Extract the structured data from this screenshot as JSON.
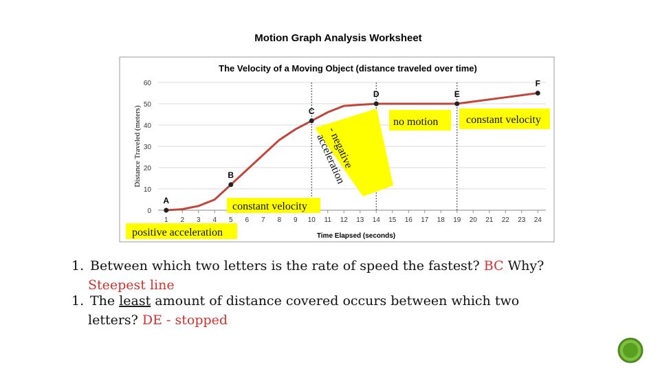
{
  "header": {
    "title": "Motion Graph Analysis Worksheet"
  },
  "chart_data": {
    "type": "line",
    "title": "The Velocity of a Moving Object (distance traveled over time)",
    "x_label": "Time Elapsed (seconds)",
    "y_label": "Distance Traveled (meters)",
    "x": [
      1,
      2,
      3,
      4,
      5,
      6,
      7,
      8,
      9,
      10,
      11,
      12,
      13,
      14,
      15,
      16,
      17,
      18,
      19,
      20,
      21,
      22,
      23,
      24
    ],
    "series": [
      {
        "name": "Distance",
        "color": "#c0463c",
        "values": [
          0,
          0.5,
          2,
          5,
          12,
          19,
          26,
          33,
          38,
          42,
          46,
          49,
          49.5,
          50,
          50,
          50,
          50,
          50,
          50,
          51,
          52,
          53,
          54,
          55
        ],
        "point_labels": [
          "A",
          null,
          null,
          null,
          "B",
          null,
          null,
          null,
          null,
          "C",
          null,
          null,
          null,
          "D",
          null,
          null,
          null,
          null,
          "E",
          null,
          null,
          null,
          null,
          "F"
        ]
      }
    ],
    "xlim": [
      0.5,
      24.5
    ],
    "xticks": [
      1,
      2,
      3,
      4,
      5,
      6,
      7,
      8,
      9,
      10,
      11,
      12,
      13,
      14,
      15,
      16,
      17,
      18,
      19,
      20,
      21,
      22,
      23,
      24
    ],
    "ylim": [
      0,
      60
    ],
    "yticks": [
      0,
      10,
      20,
      30,
      40,
      50,
      60
    ],
    "grid": true,
    "reference_lines": [
      10,
      14,
      19
    ],
    "annotations": [
      "no motion",
      "constant velocity",
      "- negative",
      "acceleration",
      "constant velocity",
      "positive acceleration"
    ]
  },
  "questions": [
    {
      "number": "1.",
      "text": "Between which two letters is the rate of speed the fastest?",
      "answer": "BC",
      "tail": "Why?",
      "explanation": "Steepest line"
    },
    {
      "number": "1.",
      "before": "The",
      "emphasis": "least",
      "after": "amount of distance covered occurs between which two",
      "after_line2": "letters?",
      "answer": "DE - stopped"
    }
  ]
}
